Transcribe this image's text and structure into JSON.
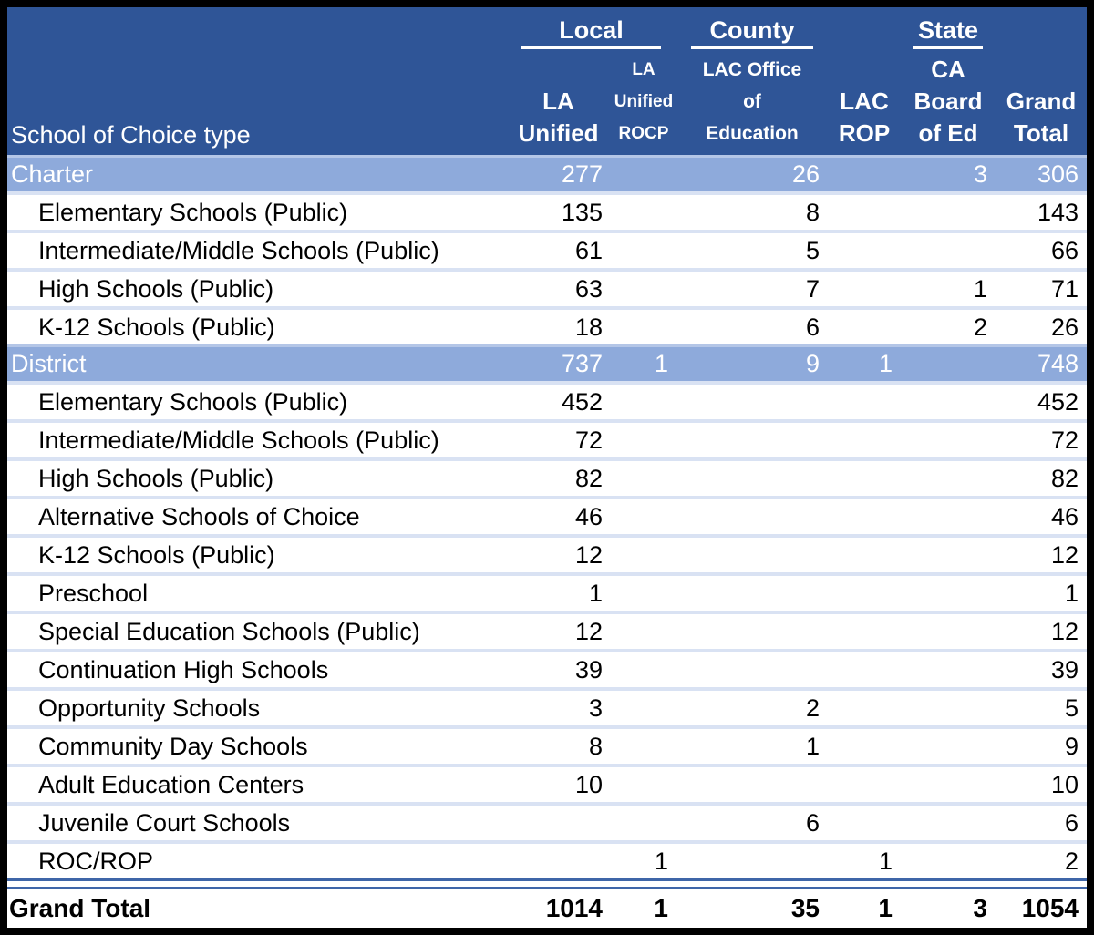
{
  "header": {
    "row_header": "School of Choice type",
    "groups": [
      {
        "label": "Local"
      },
      {
        "label": "County"
      },
      {
        "label": "State"
      }
    ],
    "columns": [
      [
        "LA",
        "Unified"
      ],
      [
        "LA",
        "Unified",
        "ROCP"
      ],
      [
        "LAC Office",
        "of",
        "Education"
      ],
      [
        "LAC",
        "ROP"
      ],
      [
        "CA",
        "Board",
        "of Ed"
      ],
      [
        "Grand",
        "Total"
      ]
    ]
  },
  "colors": {
    "header_bg": "#2F5597",
    "header_text": "#FFFFFF",
    "band_bg": "#8EAADB",
    "band_text": "#FFFFFF",
    "row_separator": "#D9E2F3",
    "double_line": "#3F66A8",
    "outer_border": "#000000",
    "body_text": "#000000"
  },
  "chart_data": {
    "type": "table",
    "columns": [
      "School of Choice type",
      "LA Unified",
      "LA Unified ROCP",
      "LAC Office of Education",
      "LAC ROP",
      "CA Board of Ed",
      "Grand Total"
    ],
    "column_groups": [
      {
        "label": "Local",
        "columns": [
          "LA Unified",
          "LA Unified ROCP"
        ]
      },
      {
        "label": "County",
        "columns": [
          "LAC Office of Education",
          "LAC ROP"
        ]
      },
      {
        "label": "State",
        "columns": [
          "CA Board of Ed"
        ]
      }
    ],
    "rows": [
      {
        "label": "Charter",
        "group": true,
        "values": [
          277,
          null,
          26,
          null,
          3,
          306
        ]
      },
      {
        "label": "Elementary Schools (Public)",
        "group": false,
        "values": [
          135,
          null,
          8,
          null,
          null,
          143
        ]
      },
      {
        "label": "Intermediate/Middle Schools (Public)",
        "group": false,
        "values": [
          61,
          null,
          5,
          null,
          null,
          66
        ]
      },
      {
        "label": "High Schools (Public)",
        "group": false,
        "values": [
          63,
          null,
          7,
          null,
          1,
          71
        ]
      },
      {
        "label": "K-12 Schools (Public)",
        "group": false,
        "values": [
          18,
          null,
          6,
          null,
          2,
          26
        ]
      },
      {
        "label": "District",
        "group": true,
        "values": [
          737,
          1,
          9,
          1,
          null,
          748
        ]
      },
      {
        "label": "Elementary Schools (Public)",
        "group": false,
        "values": [
          452,
          null,
          null,
          null,
          null,
          452
        ]
      },
      {
        "label": "Intermediate/Middle Schools (Public)",
        "group": false,
        "values": [
          72,
          null,
          null,
          null,
          null,
          72
        ]
      },
      {
        "label": "High Schools (Public)",
        "group": false,
        "values": [
          82,
          null,
          null,
          null,
          null,
          82
        ]
      },
      {
        "label": "Alternative Schools of Choice",
        "group": false,
        "values": [
          46,
          null,
          null,
          null,
          null,
          46
        ]
      },
      {
        "label": "K-12 Schools (Public)",
        "group": false,
        "values": [
          12,
          null,
          null,
          null,
          null,
          12
        ]
      },
      {
        "label": "Preschool",
        "group": false,
        "values": [
          1,
          null,
          null,
          null,
          null,
          1
        ]
      },
      {
        "label": "Special Education Schools (Public)",
        "group": false,
        "values": [
          12,
          null,
          null,
          null,
          null,
          12
        ]
      },
      {
        "label": "Continuation High Schools",
        "group": false,
        "values": [
          39,
          null,
          null,
          null,
          null,
          39
        ]
      },
      {
        "label": "Opportunity Schools",
        "group": false,
        "values": [
          3,
          null,
          2,
          null,
          null,
          5
        ]
      },
      {
        "label": "Community Day Schools",
        "group": false,
        "values": [
          8,
          null,
          1,
          null,
          null,
          9
        ]
      },
      {
        "label": "Adult Education Centers",
        "group": false,
        "values": [
          10,
          null,
          null,
          null,
          null,
          10
        ]
      },
      {
        "label": "Juvenile Court Schools",
        "group": false,
        "values": [
          null,
          null,
          6,
          null,
          null,
          6
        ]
      },
      {
        "label": "ROC/ROP",
        "group": false,
        "values": [
          null,
          1,
          null,
          1,
          null,
          2
        ]
      }
    ],
    "grand_total": {
      "label": "Grand Total",
      "values": [
        1014,
        1,
        35,
        1,
        3,
        1054
      ]
    }
  }
}
